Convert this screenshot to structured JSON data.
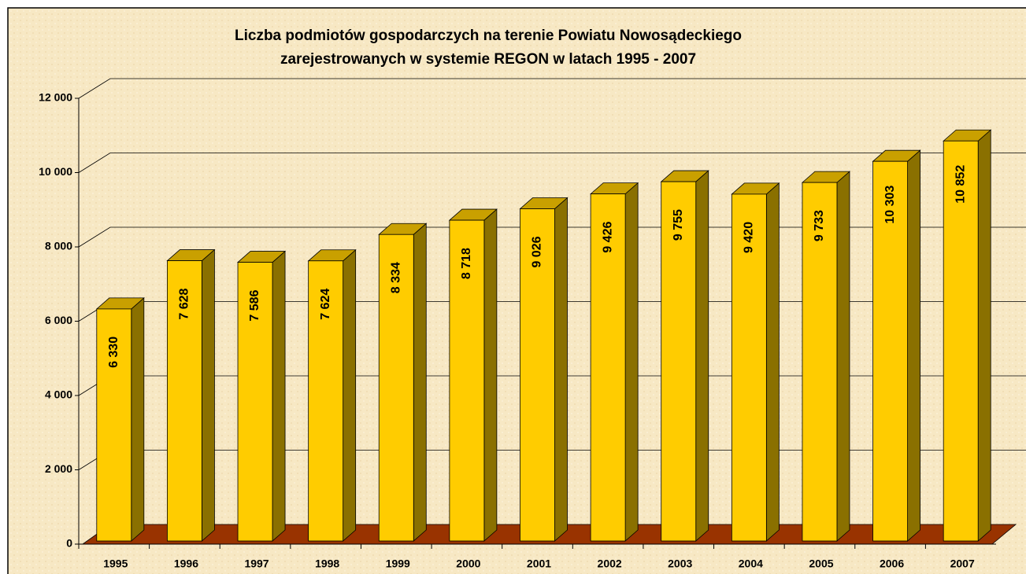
{
  "chart_data": {
    "type": "bar3d",
    "title": [
      "Liczba podmiotów gospodarczych na terenie Powiatu Nowosądeckiego",
      "zarejestrowanych w systemie REGON  w latach 1995 - 2007"
    ],
    "categories": [
      "1995",
      "1996",
      "1997",
      "1998",
      "1999",
      "2000",
      "2001",
      "2002",
      "2003",
      "2004",
      "2005",
      "2006",
      "2007"
    ],
    "values": [
      6330,
      7628,
      7586,
      7624,
      8334,
      8718,
      9026,
      9426,
      9755,
      9420,
      9733,
      10303,
      10852
    ],
    "value_labels": [
      "6 330",
      "7 628",
      "7 586",
      "7 624",
      "8 334",
      "8 718",
      "9 026",
      "9 426",
      "9 755",
      "9 420",
      "9 733",
      "10 303",
      "10 852"
    ],
    "color": "#ffcc00",
    "ylim": [
      0,
      12000
    ],
    "yticks": [
      0,
      {
        "value": 2000,
        "label": "2 000"
      },
      {
        "value": 4000,
        "label": "4 000"
      },
      {
        "value": 6000,
        "label": "6 000"
      },
      {
        "value": 8000,
        "label": "8 000"
      },
      {
        "value": 10000,
        "label": "10 000"
      },
      {
        "value": 12000,
        "label": "12 000"
      }
    ],
    "grid": true
  }
}
